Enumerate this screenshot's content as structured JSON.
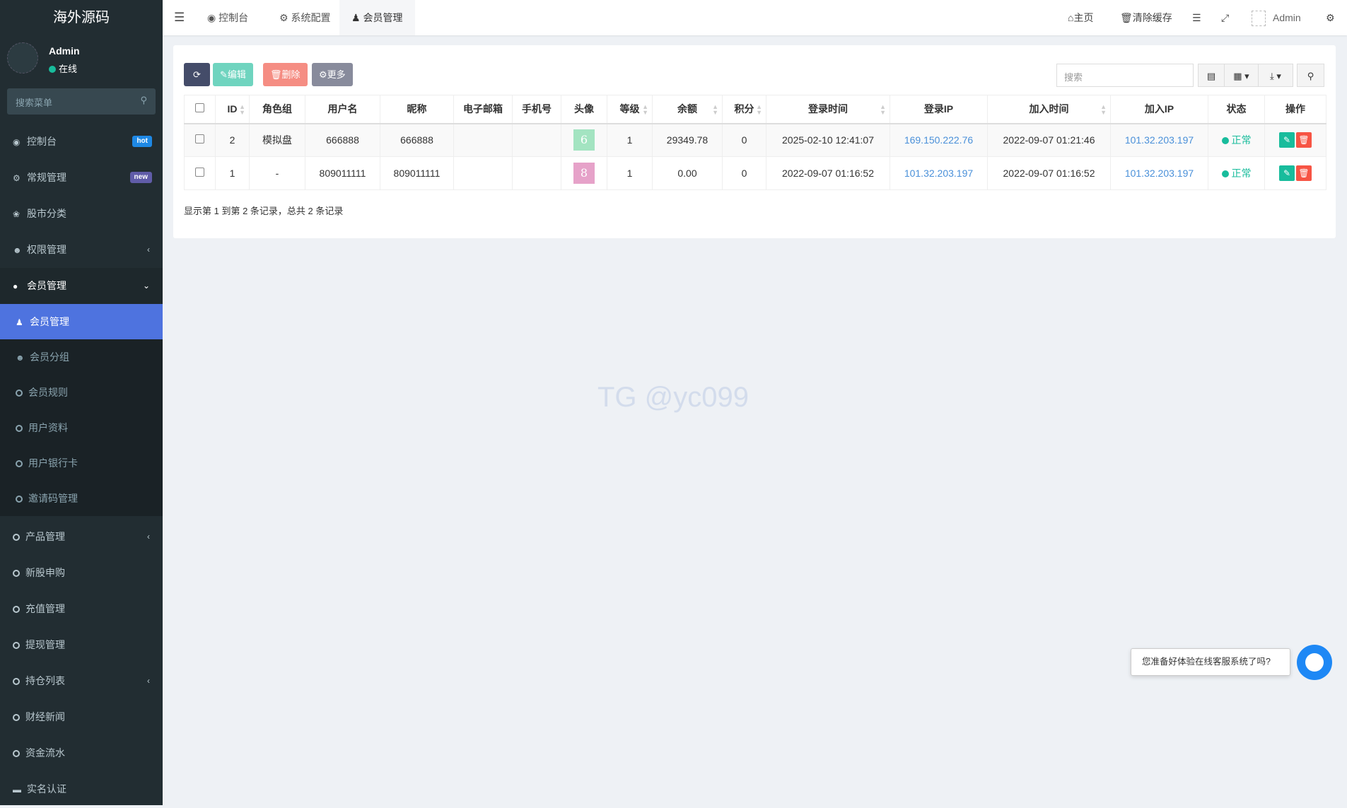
{
  "app": {
    "logo": "海外源码",
    "user": "Admin",
    "status": "在线",
    "search_placeholder": "搜索菜单"
  },
  "sidebar": {
    "items": [
      {
        "label": "控制台",
        "icon": "dashboard-icon",
        "badge": "hot",
        "badge_color": "#1e88e5"
      },
      {
        "label": "常规管理",
        "icon": "cogs-icon",
        "badge": "new",
        "badge_color": "#605ca8"
      },
      {
        "label": "股市分类",
        "icon": "leaf-icon"
      },
      {
        "label": "权限管理",
        "icon": "group-icon"
      },
      {
        "label": "会员管理",
        "icon": "user-circle-icon"
      }
    ],
    "sub": [
      {
        "label": "会员管理",
        "icon": "user-icon"
      },
      {
        "label": "会员分组",
        "icon": "group-icon"
      },
      {
        "label": "会员规则",
        "icon": "circle-icon"
      },
      {
        "label": "用户资料",
        "icon": "circle-icon"
      },
      {
        "label": "用户银行卡",
        "icon": "circle-icon"
      },
      {
        "label": "邀请码管理",
        "icon": "circle-icon"
      }
    ],
    "items2": [
      {
        "label": "产品管理"
      },
      {
        "label": "新股申购"
      },
      {
        "label": "充值管理"
      },
      {
        "label": "提现管理"
      },
      {
        "label": "持仓列表"
      },
      {
        "label": "财经新闻"
      },
      {
        "label": "资金流水"
      },
      {
        "label": "实名认证"
      }
    ]
  },
  "header": {
    "tabs": [
      "控制台",
      "系统配置",
      "会员管理"
    ],
    "home": "主页",
    "clear_cache": "清除缓存",
    "user": "Admin"
  },
  "toolbar": {
    "edit": "编辑",
    "delete": "删除",
    "more": "更多",
    "search_placeholder": "搜索"
  },
  "table": {
    "columns": [
      "ID",
      "角色组",
      "用户名",
      "昵称",
      "电子邮箱",
      "手机号",
      "头像",
      "等级",
      "余额",
      "积分",
      "登录时间",
      "登录IP",
      "加入时间",
      "加入IP",
      "状态",
      "操作"
    ],
    "rows": [
      {
        "id": "2",
        "group": "模拟盘",
        "username": "666888",
        "nickname": "666888",
        "email": "",
        "mobile": "",
        "avatar": "6",
        "avatar_color": "#a3e4c1",
        "level": "1",
        "money": "29349.78",
        "score": "0",
        "logintime": "2025-02-10 12:41:07",
        "loginip": "169.150.222.76",
        "jointime": "2022-09-07 01:21:46",
        "joinip": "101.32.203.197",
        "status": "正常"
      },
      {
        "id": "1",
        "group": "-",
        "username": "809011111",
        "nickname": "809011111",
        "email": "",
        "mobile": "",
        "avatar": "8",
        "avatar_color": "#e6a2c9",
        "level": "1",
        "money": "0.00",
        "score": "0",
        "logintime": "2022-09-07 01:16:52",
        "loginip": "101.32.203.197",
        "jointime": "2022-09-07 01:16:52",
        "joinip": "101.32.203.197",
        "status": "正常"
      }
    ],
    "footer": "显示第 1 到第 2 条记录，总共 2 条记录"
  },
  "watermark": "TG @yc099",
  "chat": {
    "text": "您准备好体验在线客服系统了吗?"
  }
}
